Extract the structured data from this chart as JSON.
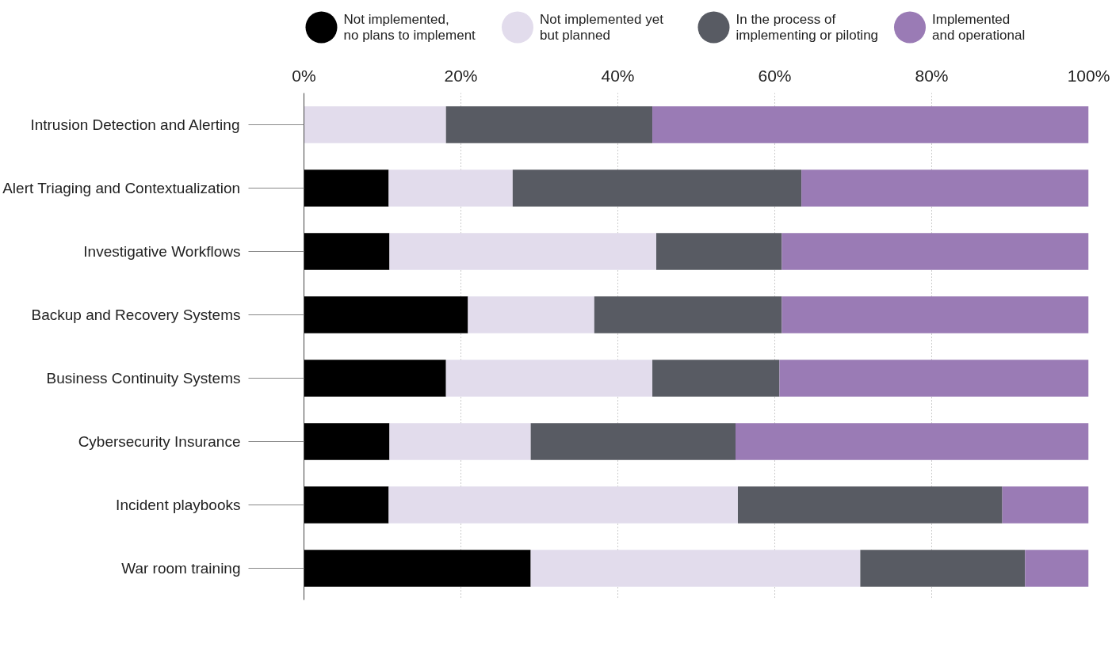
{
  "chart_data": {
    "type": "bar",
    "orientation": "horizontal",
    "stacked": true,
    "categories": [
      "Intrusion Detection and Alerting",
      "Alert Triaging and Contextualization",
      "Investigative Workflows",
      "Backup and Recovery Systems",
      "Business Continuity Systems",
      "Cybersecurity Insurance",
      "Incident playbooks",
      "War room training"
    ],
    "series": [
      {
        "name": "Not implemented,\nno plans to implement",
        "color": "#000000",
        "values": [
          0,
          10.8,
          10.9,
          20.9,
          18.1,
          10.9,
          10.8,
          28.9
        ]
      },
      {
        "name": "Not implemented yet\nbut planned",
        "color": "#e2dcec",
        "values": [
          18.1,
          15.8,
          34.0,
          16.1,
          26.3,
          18.0,
          44.5,
          42.0
        ]
      },
      {
        "name": "In the process of\nimplementing or piloting",
        "color": "#585b63",
        "values": [
          26.3,
          36.8,
          16.0,
          23.9,
          16.2,
          26.1,
          33.7,
          21.0
        ]
      },
      {
        "name": "Implemented\nand operational",
        "color": "#9a7bb5",
        "values": [
          55.6,
          36.6,
          39.1,
          39.1,
          39.4,
          45.0,
          11.0,
          8.1
        ]
      }
    ],
    "xlim": [
      0,
      100
    ],
    "xticks": [
      {
        "value": 0,
        "label": "0%"
      },
      {
        "value": 20,
        "label": "20%"
      },
      {
        "value": 40,
        "label": "40%"
      },
      {
        "value": 60,
        "label": "60%"
      },
      {
        "value": 80,
        "label": "80%"
      },
      {
        "value": 100,
        "label": "100%"
      }
    ],
    "grid": "x",
    "legend": "top"
  }
}
